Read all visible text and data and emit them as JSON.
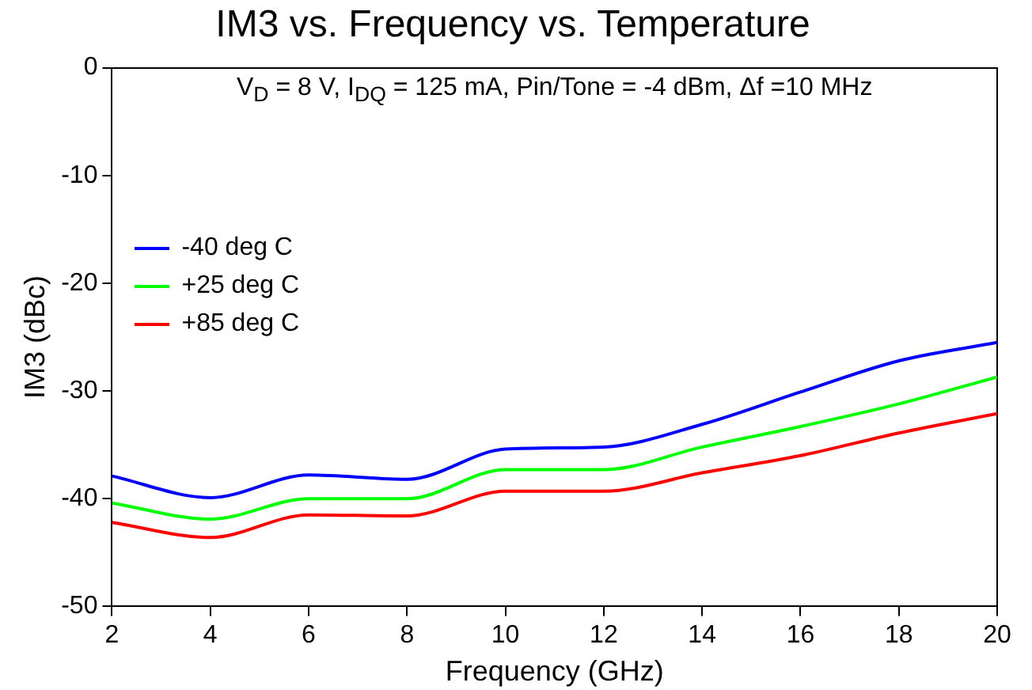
{
  "chart_data": {
    "type": "line",
    "title": "IM3 vs. Frequency vs. Temperature",
    "xlabel": "Frequency (GHz)",
    "ylabel": "IM3 (dBc)",
    "annotations": [
      "V$_{D}$ = 8 V, I$_{DQ}$ = 125 mA, Pin/Tone = -4 dBm, Δf =10 MHz"
    ],
    "x": [
      2,
      4,
      6,
      8,
      10,
      12,
      14,
      16,
      18,
      20
    ],
    "series": [
      {
        "name": "-40 deg C",
        "color": "#0000ff",
        "values": [
          -37.9,
          -39.9,
          -37.8,
          -38.2,
          -35.4,
          -35.2,
          -33.1,
          -30.1,
          -27.2,
          -25.5
        ]
      },
      {
        "name": "+25 deg C",
        "color": "#00ff00",
        "values": [
          -40.4,
          -41.9,
          -40,
          -40,
          -37.3,
          -37.3,
          -35.2,
          -33.3,
          -31.2,
          -28.7
        ]
      },
      {
        "name": "+85 deg C",
        "color": "#ff0000",
        "values": [
          -42.2,
          -43.6,
          -41.5,
          -41.6,
          -39.3,
          -39.3,
          -37.6,
          -36,
          -33.9,
          -32.1
        ]
      }
    ],
    "xlim": [
      2,
      20
    ],
    "xticks": [
      2,
      4,
      6,
      8,
      10,
      12,
      14,
      16,
      18,
      20
    ],
    "ylim": [
      -50,
      0
    ],
    "yticks": [
      -50,
      -40,
      -30,
      -20,
      -10,
      0
    ],
    "grid": false,
    "legend": "left",
    "marker": "none",
    "line_style": "solid"
  }
}
